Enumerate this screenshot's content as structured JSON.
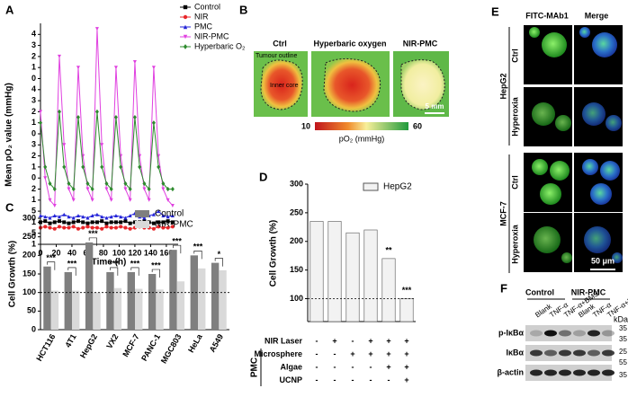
{
  "panel_labels": [
    "A",
    "B",
    "C",
    "D",
    "E",
    "F"
  ],
  "chart_data": [
    {
      "type": "line",
      "x_label": "Time (h)",
      "y_label": "Mean pO₂ value (mmHg)",
      "x": [
        0,
        6,
        12,
        18,
        24,
        30,
        36,
        42,
        48,
        54,
        60,
        66,
        72,
        78,
        84,
        90,
        96,
        102,
        108,
        114,
        120,
        126,
        132,
        138,
        144,
        150,
        156,
        162,
        168
      ],
      "xlim": [
        0,
        175
      ],
      "xticks": [
        0,
        20,
        40,
        60,
        80,
        100,
        120,
        140,
        160
      ],
      "ylim": [
        0,
        20
      ],
      "yticks": [
        {
          "value": 0,
          "label": "1"
        },
        {
          "value": 1,
          "label": "5"
        },
        {
          "value": 2,
          "label": "1"
        },
        {
          "value": 3,
          "label": "5"
        },
        {
          "value": 4,
          "label": "1"
        },
        {
          "value": 5,
          "label": "2"
        },
        {
          "value": 6,
          "label": "0"
        },
        {
          "value": 7,
          "label": "1"
        },
        {
          "value": 8,
          "label": "2"
        },
        {
          "value": 9,
          "label": "3"
        },
        {
          "value": 10,
          "label": "0"
        },
        {
          "value": 11,
          "label": "1"
        },
        {
          "value": 12,
          "label": "2"
        },
        {
          "value": 13,
          "label": "3"
        },
        {
          "value": 14,
          "label": "4"
        },
        {
          "value": 15,
          "label": "0"
        },
        {
          "value": 16,
          "label": "1"
        },
        {
          "value": 17,
          "label": "2"
        },
        {
          "value": 18,
          "label": "3"
        },
        {
          "value": 19,
          "label": "4"
        }
      ],
      "legend": "upper right",
      "series": [
        {
          "name": "Control",
          "color": "#000000",
          "marker": "square",
          "values": [
            2,
            2.1,
            1.9,
            2,
            2.1,
            2,
            1.9,
            2,
            2.1,
            2,
            1.9,
            2,
            2,
            2.1,
            1.9,
            2,
            2,
            2,
            2.1,
            1.9,
            2,
            2,
            2.1,
            2,
            1.9,
            2,
            2,
            2.1,
            2
          ]
        },
        {
          "name": "NIR",
          "color": "#e8262a",
          "marker": "circle",
          "values": [
            1.5,
            1.6,
            1.5,
            1.4,
            1.6,
            1.5,
            1.5,
            1.6,
            1.4,
            1.5,
            1.6,
            1.5,
            1.5,
            1.4,
            1.6,
            1.5,
            1.5,
            1.6,
            1.5,
            1.4,
            1.5,
            1.6,
            1.5,
            1.5,
            1.4,
            1.6,
            1.5,
            1.5,
            1.6
          ]
        },
        {
          "name": "PMC",
          "color": "#2323d8",
          "marker": "triangle",
          "values": [
            2.6,
            2.5,
            2.4,
            2.6,
            2.5,
            2.7,
            2.5,
            2.4,
            2.6,
            2.5,
            2.4,
            2.6,
            2.7,
            2.5,
            2.4,
            2.5,
            2.6,
            2.5,
            2.4,
            2.6,
            2.8,
            2.5,
            2.4,
            2.6,
            2.7,
            3,
            2.6,
            2.5,
            2.6
          ]
        },
        {
          "name": "NIR-PMC",
          "color": "#e040e0",
          "marker": "triangle-down",
          "values": [
            12,
            6,
            4,
            3.5,
            17,
            9,
            5,
            4,
            16,
            8,
            5,
            4,
            19.5,
            9,
            5,
            4,
            16,
            8,
            5,
            4,
            16.5,
            8,
            5,
            4,
            16,
            8,
            5,
            4,
            3.5
          ]
        },
        {
          "name": "Hyperbaric O₂",
          "color": "#2e8b2e",
          "marker": "diamond",
          "values": [
            11,
            7,
            5.5,
            5,
            12,
            7,
            5.5,
            5,
            11.5,
            7,
            5.5,
            5,
            12,
            7,
            5.5,
            5,
            11.5,
            7,
            5.5,
            5,
            11.5,
            7,
            5.5,
            5,
            11,
            7,
            5.5,
            5,
            5
          ]
        }
      ]
    },
    {
      "type": "bar",
      "y_label": "Cell Growth (%)",
      "categories": [
        "HCT116",
        "4T1",
        "HepG2",
        "VX2",
        "MCF-7",
        "PANC-1",
        "MGC803",
        "HeLa",
        "A549"
      ],
      "series": [
        {
          "name": "Control",
          "color": "#7f7f7f",
          "values": [
            170,
            155,
            235,
            155,
            155,
            150,
            215,
            200,
            180
          ]
        },
        {
          "name": "NIR-PMC",
          "color": "#d9d9d9",
          "values": [
            105,
            105,
            100,
            112,
            110,
            108,
            130,
            165,
            160
          ]
        }
      ],
      "annotations": [
        "***",
        "***",
        "***",
        "***",
        "***",
        "***",
        "***",
        "***",
        "*"
      ],
      "reference_line": 100,
      "ylim": [
        0,
        300
      ],
      "yticks": [
        0,
        50,
        100,
        150,
        200,
        250,
        300
      ],
      "legend": "upper right"
    },
    {
      "type": "bar",
      "y_label": "Cell Growth (%)",
      "series": [
        {
          "name": "HepG2",
          "color": "#f2f2f2",
          "values": [
            235,
            235,
            215,
            220,
            170,
            100
          ]
        }
      ],
      "annotations": [
        null,
        null,
        null,
        null,
        "**",
        "***"
      ],
      "reference_line": 100,
      "ylim": [
        60,
        300
      ],
      "yticks": [
        100,
        150,
        200,
        250,
        300
      ],
      "legend": "upper right",
      "table": {
        "group_label": "PMC",
        "rows": [
          {
            "label": "NIR Laser",
            "cells": [
              "-",
              "+",
              "-",
              "+",
              "+",
              "+"
            ]
          },
          {
            "label": "Microsphere",
            "cells": [
              "-",
              "-",
              "+",
              "+",
              "+",
              "+"
            ]
          },
          {
            "label": "Algae",
            "cells": [
              "-",
              "-",
              "-",
              "-",
              "+",
              "+"
            ]
          },
          {
            "label": "UCNP",
            "cells": [
              "-",
              "-",
              "-",
              "-",
              "-",
              "+"
            ]
          }
        ]
      }
    }
  ],
  "panel_b": {
    "columns": [
      "Ctrl",
      "Hyperbaric oxygen",
      "NIR-PMC"
    ],
    "annotations": [
      "Tumour outline",
      "Inner core"
    ],
    "scale_bar": "5 mm",
    "colorbar": {
      "min": 10,
      "max": 60,
      "label": "pO₂ (mmHg)"
    }
  },
  "panel_e": {
    "columns": [
      "FITC-MAb1",
      "Merge"
    ],
    "groups": [
      {
        "name": "HepG2",
        "rows": [
          "Ctrl",
          "Hyperoxia"
        ]
      },
      {
        "name": "MCF-7",
        "rows": [
          "Ctrl",
          "Hyperoxia"
        ]
      }
    ],
    "scale_bar": "50 μm"
  },
  "panel_f": {
    "groups": [
      "Control",
      "NIR-PMC"
    ],
    "lanes": [
      "Blank",
      "TNF-α",
      "TNF-α+BMS",
      "Blank",
      "TNF-α",
      "TNF-α+BMS"
    ],
    "bands": [
      "p-IκBα",
      "IκBα",
      "β-actin"
    ],
    "unit": "kDa",
    "markers": [
      35,
      35,
      25,
      55,
      35
    ]
  }
}
